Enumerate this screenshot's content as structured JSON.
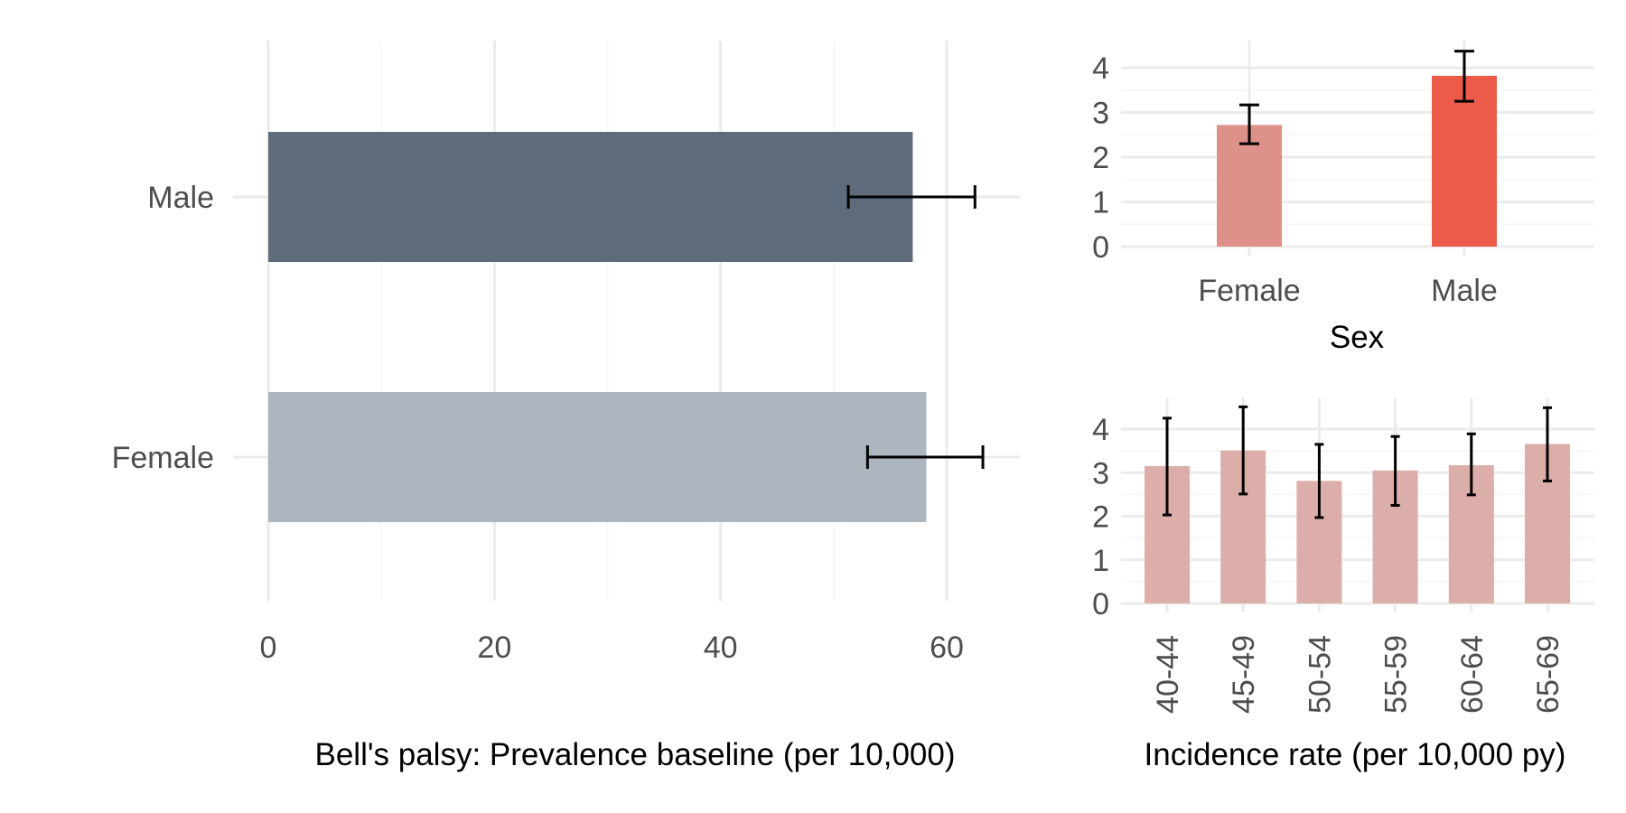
{
  "chart_data": [
    {
      "type": "bar",
      "orientation": "horizontal",
      "title": "",
      "xlabel": "Bell's palsy: Prevalence baseline (per 10,000)",
      "ylabel": "",
      "categories": [
        "Male",
        "Female"
      ],
      "values": [
        57.0,
        58.2
      ],
      "ci_lower": [
        51.3,
        53.0
      ],
      "ci_upper": [
        62.5,
        63.2
      ],
      "colors": [
        "#5d6b7a",
        "#adb5bf"
      ],
      "xlim": [
        0,
        66
      ],
      "x_ticks": [
        0,
        20,
        40,
        60
      ],
      "grid": true,
      "legend": "none"
    },
    {
      "type": "bar",
      "orientation": "vertical",
      "title": "",
      "xlabel": "Sex",
      "ylabel": "",
      "categories": [
        "Female",
        "Male"
      ],
      "values": [
        2.72,
        3.82
      ],
      "ci_lower": [
        2.3,
        3.25
      ],
      "ci_upper": [
        3.17,
        4.37
      ],
      "colors": [
        "#de9189",
        "#ec5a4a"
      ],
      "ylim": [
        0,
        4.6
      ],
      "y_ticks": [
        0,
        1,
        2,
        3,
        4
      ],
      "grid": true,
      "legend": "none"
    },
    {
      "type": "bar",
      "orientation": "vertical",
      "title": "",
      "xlabel": "Incidence rate (per 10,000 py)",
      "ylabel": "",
      "categories": [
        "40-44",
        "45-49",
        "50-54",
        "55-59",
        "60-64",
        "65-69"
      ],
      "values": [
        3.15,
        3.51,
        2.81,
        3.05,
        3.17,
        3.66
      ],
      "ci_lower": [
        2.03,
        2.51,
        1.97,
        2.25,
        2.49,
        2.81
      ],
      "ci_upper": [
        4.25,
        4.51,
        3.65,
        3.83,
        3.89,
        4.49
      ],
      "colors": [
        "#dcaeaa"
      ],
      "ylim": [
        0,
        4.6
      ],
      "y_ticks": [
        0,
        1,
        2,
        3,
        4
      ],
      "grid": true,
      "legend": "none"
    }
  ]
}
